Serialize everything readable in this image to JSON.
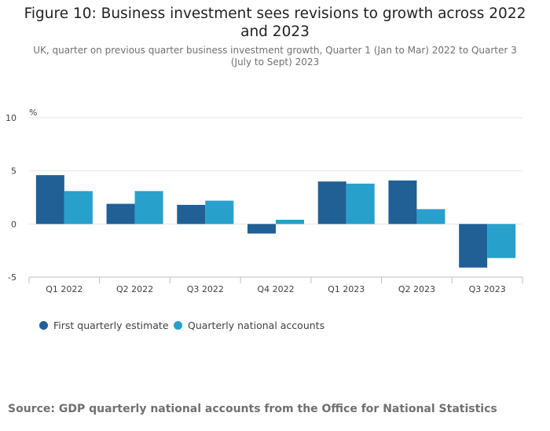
{
  "title": "Figure 10: Business investment sees revisions to growth across 2022 and 2023",
  "subtitle": "UK, quarter on previous quarter business investment growth, Quarter 1 (Jan to Mar) 2022 to Quarter 3 (July to Sept) 2023",
  "source": "Source: GDP quarterly national accounts from the Office for National Statistics",
  "colors": {
    "first_estimate": "#206095",
    "national_accounts": "#27a0cc",
    "grid": "#e6e6e6",
    "axis": "#bfbfbf"
  },
  "chart_data": {
    "type": "bar",
    "ylabel": "%",
    "ylim": [
      -5,
      10
    ],
    "yticks": [
      -5,
      0,
      5,
      10
    ],
    "categories": [
      "Q1 2022",
      "Q2 2022",
      "Q3 2022",
      "Q4 2022",
      "Q1 2023",
      "Q2 2023",
      "Q3 2023"
    ],
    "series": [
      {
        "name": "First quarterly estimate",
        "values": [
          4.6,
          1.9,
          1.8,
          -0.9,
          4.0,
          4.1,
          -4.1
        ]
      },
      {
        "name": "Quarterly national accounts",
        "values": [
          3.1,
          3.1,
          2.2,
          0.4,
          3.8,
          1.4,
          -3.2
        ]
      }
    ],
    "grid": true,
    "legend": "bottom-left"
  }
}
